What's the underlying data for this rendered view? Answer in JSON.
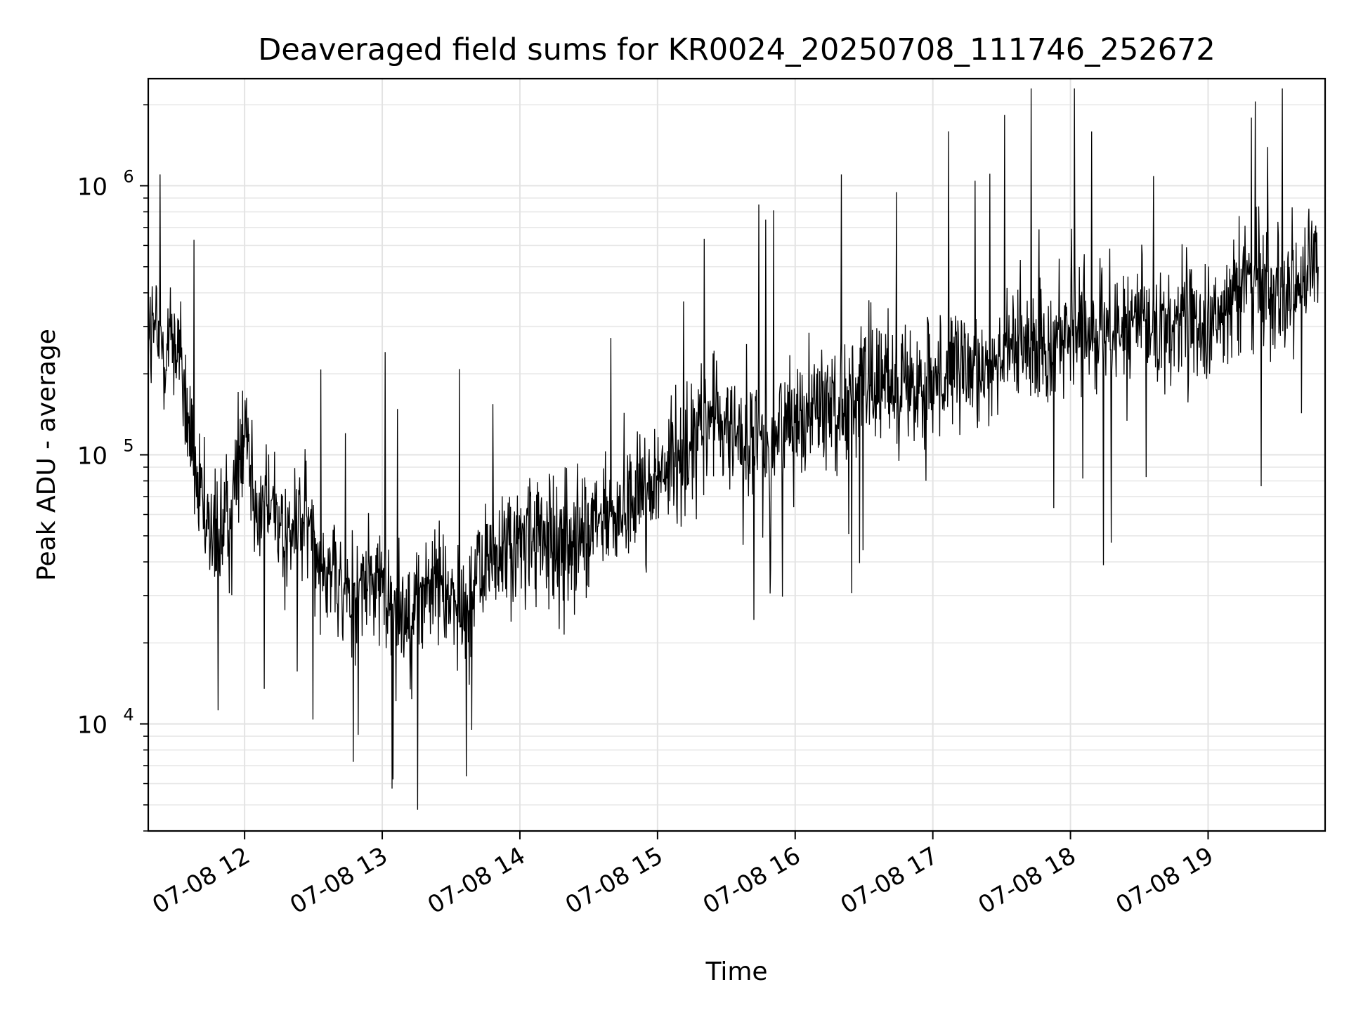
{
  "chart_data": {
    "type": "line",
    "title": "Deaveraged field sums for KR0024_20250708_111746_252672",
    "xlabel": "Time",
    "ylabel": "Peak ADU - average",
    "yscale": "log",
    "ylim": [
      4000,
      2500000
    ],
    "xlim": [
      "2025-07-08 11:18",
      "2025-07-08 19:51"
    ],
    "grid": true,
    "legend": "none",
    "x_ticks": [
      {
        "time": "2025-07-08 12:00",
        "label": "07-08 12"
      },
      {
        "time": "2025-07-08 13:00",
        "label": "07-08 13"
      },
      {
        "time": "2025-07-08 14:00",
        "label": "07-08 14"
      },
      {
        "time": "2025-07-08 15:00",
        "label": "07-08 15"
      },
      {
        "time": "2025-07-08 16:00",
        "label": "07-08 16"
      },
      {
        "time": "2025-07-08 17:00",
        "label": "07-08 17"
      },
      {
        "time": "2025-07-08 18:00",
        "label": "07-08 18"
      },
      {
        "time": "2025-07-08 19:00",
        "label": "07-08 19"
      }
    ],
    "y_ticks": [
      {
        "value": 10000,
        "base": "10",
        "exp": "4"
      },
      {
        "value": 100000,
        "base": "10",
        "exp": "5"
      },
      {
        "value": 1000000,
        "base": "10",
        "exp": "6"
      }
    ],
    "line_color": "#000000",
    "series": [
      {
        "values_note": "",
        "x": [
          "2025-07-08 11:18",
          "2025-07-08 11:24",
          "2025-07-08 11:30",
          "2025-07-08 11:36",
          "2025-07-08 11:42",
          "2025-07-08 11:48",
          "2025-07-08 11:54",
          "2025-07-08 12:00",
          "2025-07-08 12:06",
          "2025-07-08 12:12",
          "2025-07-08 12:18",
          "2025-07-08 12:24",
          "2025-07-08 12:30",
          "2025-07-08 12:36",
          "2025-07-08 12:42",
          "2025-07-08 12:48",
          "2025-07-08 12:54",
          "2025-07-08 13:00",
          "2025-07-08 13:06",
          "2025-07-08 13:12",
          "2025-07-08 13:18",
          "2025-07-08 13:24",
          "2025-07-08 13:30",
          "2025-07-08 13:36",
          "2025-07-08 13:42",
          "2025-07-08 13:48",
          "2025-07-08 13:54",
          "2025-07-08 14:00",
          "2025-07-08 14:06",
          "2025-07-08 14:12",
          "2025-07-08 14:18",
          "2025-07-08 14:24",
          "2025-07-08 14:30",
          "2025-07-08 14:36",
          "2025-07-08 14:42",
          "2025-07-08 14:48",
          "2025-07-08 14:54",
          "2025-07-08 15:00",
          "2025-07-08 15:06",
          "2025-07-08 15:12",
          "2025-07-08 15:18",
          "2025-07-08 15:24",
          "2025-07-08 15:30",
          "2025-07-08 15:36",
          "2025-07-08 15:42",
          "2025-07-08 15:48",
          "2025-07-08 15:54",
          "2025-07-08 16:00",
          "2025-07-08 16:06",
          "2025-07-08 16:12",
          "2025-07-08 16:18",
          "2025-07-08 16:24",
          "2025-07-08 16:30",
          "2025-07-08 16:36",
          "2025-07-08 16:42",
          "2025-07-08 16:48",
          "2025-07-08 16:54",
          "2025-07-08 17:00",
          "2025-07-08 17:06",
          "2025-07-08 17:12",
          "2025-07-08 17:18",
          "2025-07-08 17:24",
          "2025-07-08 17:30",
          "2025-07-08 17:36",
          "2025-07-08 17:42",
          "2025-07-08 17:48",
          "2025-07-08 17:54",
          "2025-07-08 18:00",
          "2025-07-08 18:06",
          "2025-07-08 18:12",
          "2025-07-08 18:18",
          "2025-07-08 18:24",
          "2025-07-08 18:30",
          "2025-07-08 18:36",
          "2025-07-08 18:42",
          "2025-07-08 18:48",
          "2025-07-08 18:54",
          "2025-07-08 19:00",
          "2025-07-08 19:06",
          "2025-07-08 19:12",
          "2025-07-08 19:18",
          "2025-07-08 19:24",
          "2025-07-08 19:30",
          "2025-07-08 19:36",
          "2025-07-08 19:42",
          "2025-07-08 19:48"
        ],
        "y": [
          300000,
          250000,
          280000,
          120000,
          55000,
          50000,
          55000,
          150000,
          60000,
          70000,
          45000,
          60000,
          50000,
          40000,
          30000,
          30000,
          35000,
          30000,
          28000,
          25000,
          30000,
          35000,
          30000,
          25000,
          35000,
          40000,
          45000,
          45000,
          50000,
          45000,
          50000,
          48000,
          50000,
          55000,
          60000,
          70000,
          75000,
          80000,
          90000,
          110000,
          120000,
          140000,
          125000,
          120000,
          105000,
          110000,
          130000,
          140000,
          150000,
          150000,
          160000,
          170000,
          170000,
          175000,
          180000,
          190000,
          160000,
          180000,
          200000,
          200000,
          210000,
          220000,
          240000,
          250000,
          250000,
          260000,
          270000,
          280000,
          280000,
          290000,
          300000,
          300000,
          300000,
          310000,
          300000,
          320000,
          300000,
          310000,
          310000,
          400000,
          450000,
          420000,
          430000,
          440000,
          460000,
          500000
        ]
      }
    ]
  }
}
